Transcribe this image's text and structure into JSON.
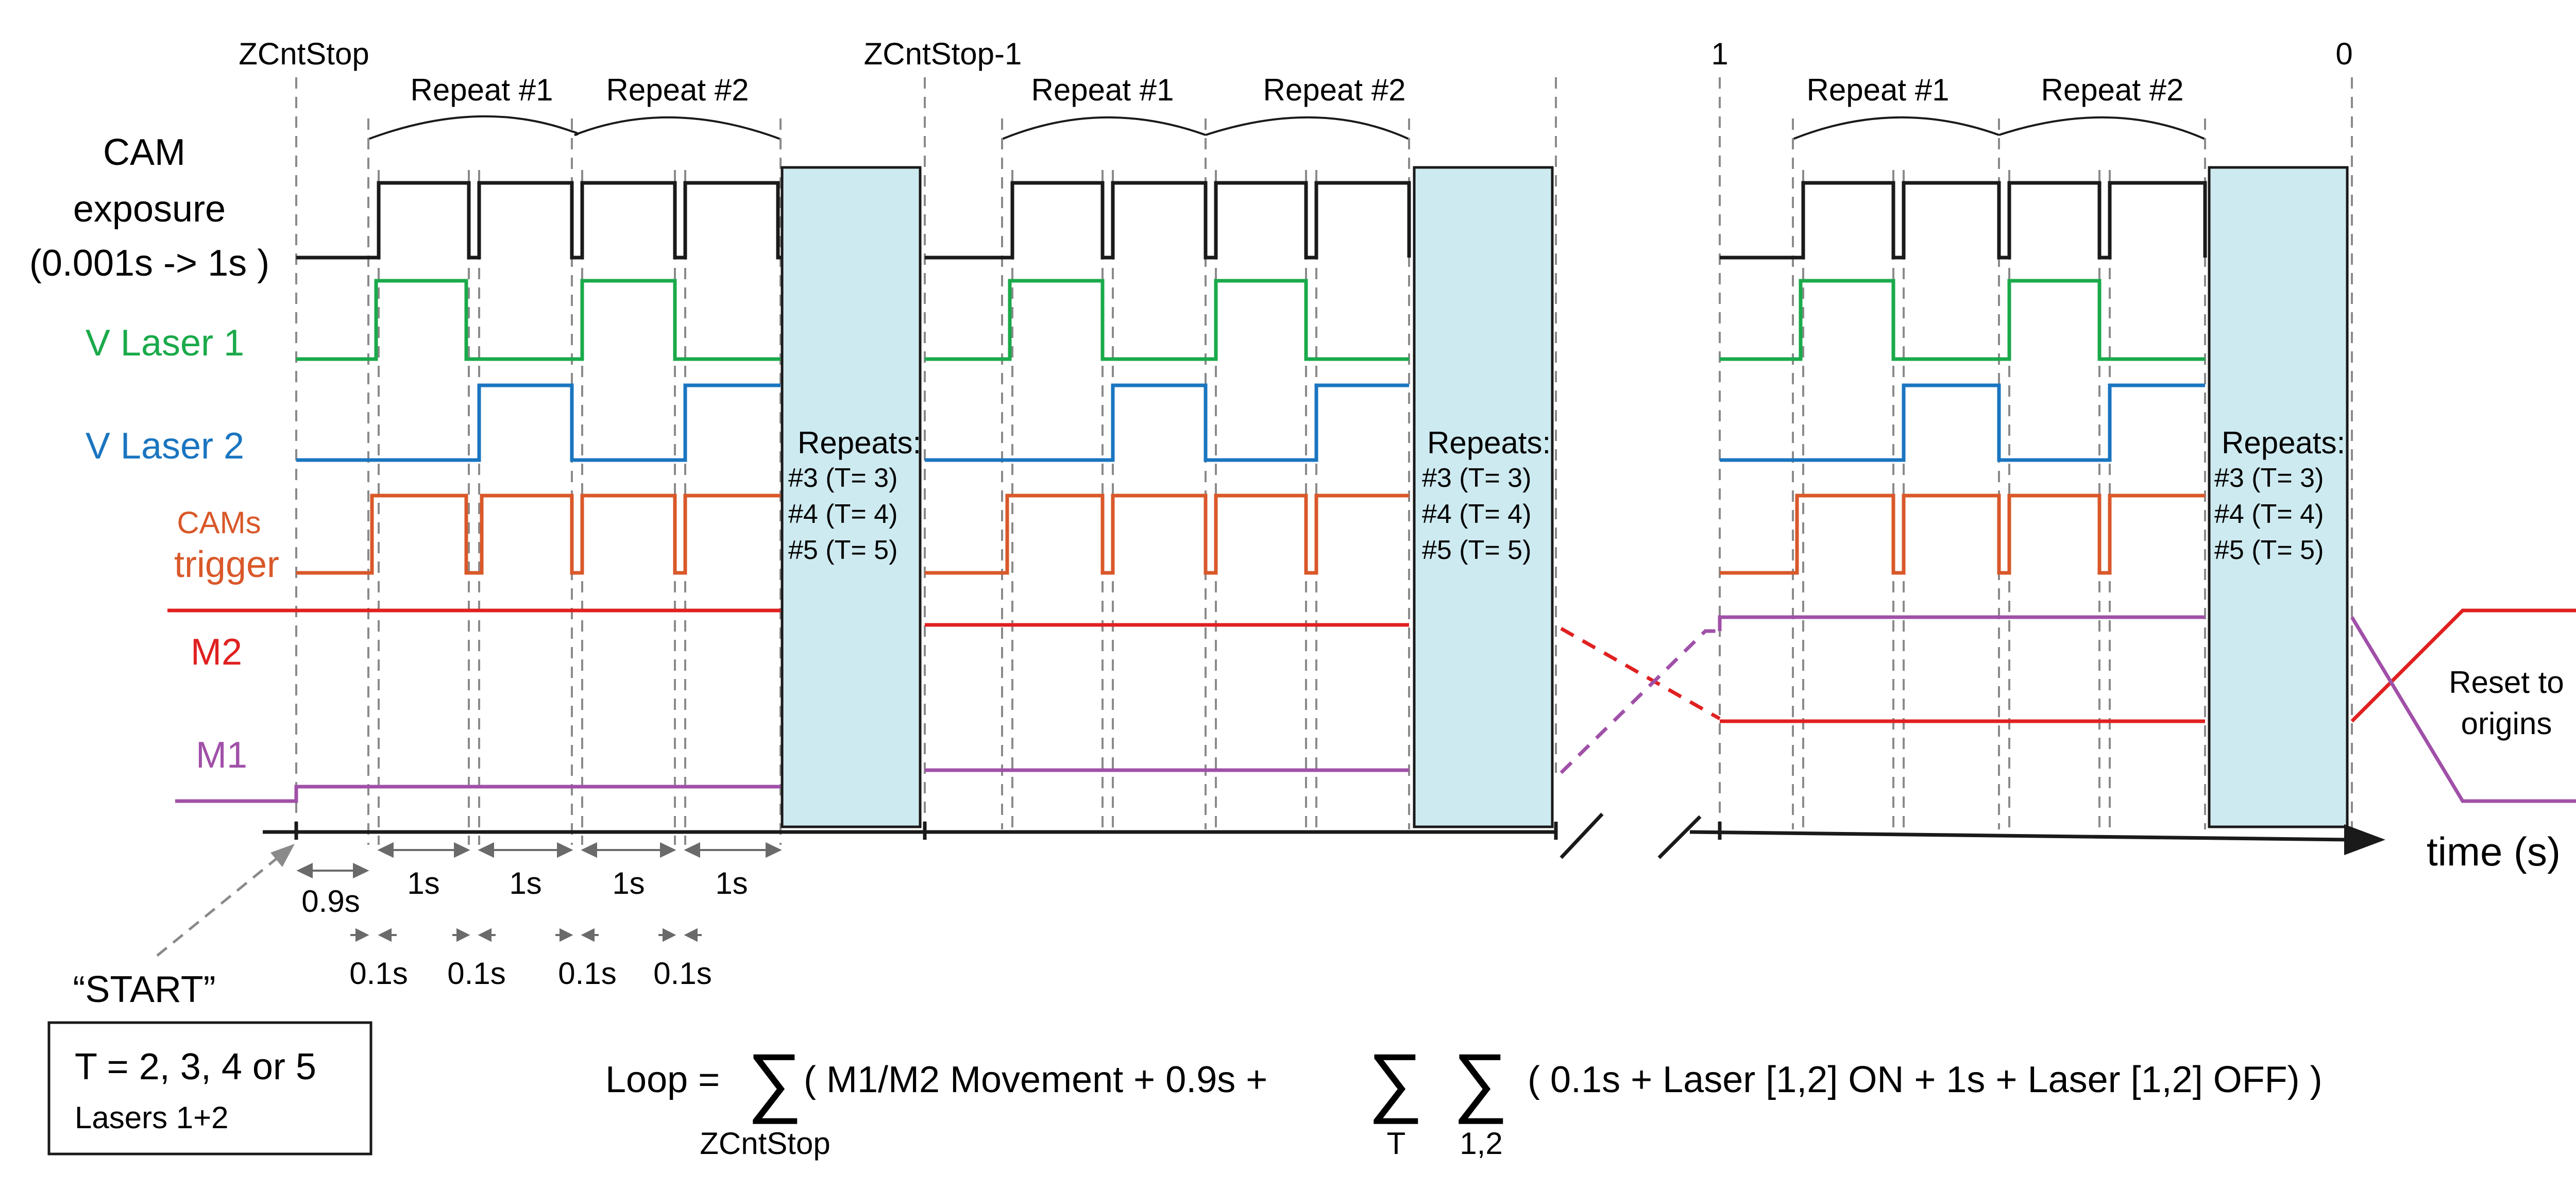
{
  "markers": {
    "zcnt_stop": "ZCntStop",
    "zcnt_stop_minus_1": "ZCntStop-1",
    "one": "1",
    "zero": "0"
  },
  "repeat_labels": {
    "r1": "Repeat #1",
    "r2": "Repeat #2"
  },
  "signals": {
    "cam_exposure_1": "CAM",
    "cam_exposure_2": "exposure",
    "cam_exposure_3": "(0.001s -> 1s )",
    "v_laser_1": "V Laser 1",
    "v_laser_2": "V Laser 2",
    "cams_trigger_1": "CAMs",
    "cams_trigger_2": "trigger",
    "m2": "M2",
    "m1": "M1"
  },
  "colors": {
    "cam": "#1a1a1a",
    "laser1": "#1aaa4a",
    "laser2": "#1a75c0",
    "trigger": "#d9582a",
    "m2": "#e02020",
    "m1": "#a050a8",
    "repeat_box": "#cdeaf0",
    "dashed": "#8a8a8a"
  },
  "repeats_box": {
    "title": "Repeats:",
    "l3": "#3 (T= 3)",
    "l4": "#4 (T= 4)",
    "l5": "#5 (T= 5)"
  },
  "timing": {
    "t09": "0.9s",
    "t1": "1s",
    "t01": "0.1s"
  },
  "start_label": "“START”",
  "params": {
    "line1": "T = 2, 3, 4 or 5",
    "line2": "Lasers 1+2"
  },
  "reset_label": {
    "line1": "Reset to",
    "line2": "origins"
  },
  "time_axis_label": "time (s)",
  "formula": {
    "lhs": "Loop =",
    "sigma": "∑",
    "first_term": "( M1/M2 Movement + 0.9s +",
    "sub1": "ZCntStop",
    "subT": "T",
    "sub12": "1,2",
    "inner": "( 0.1s + Laser [1,2] ON +  1s + Laser [1,2] OFF) )"
  }
}
